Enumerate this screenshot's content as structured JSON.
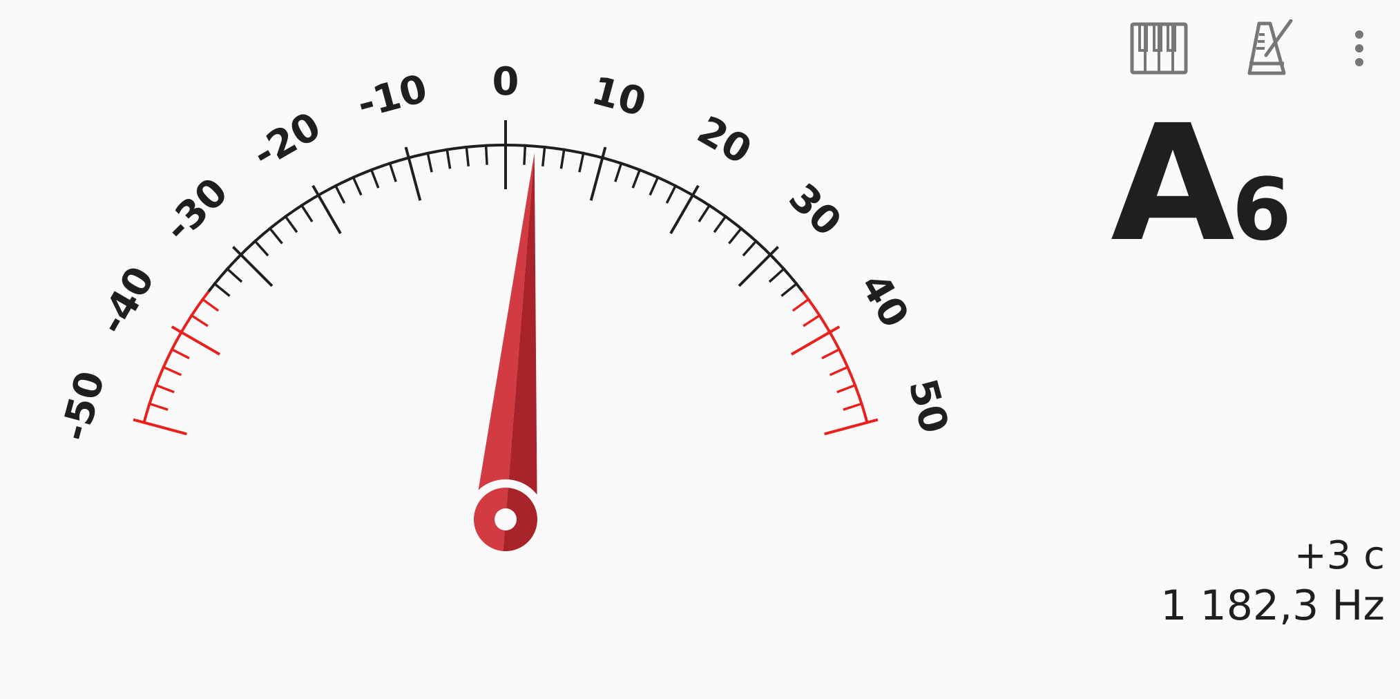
{
  "toolbar": {
    "piano_icon": "piano-keyboard-icon",
    "metronome_icon": "metronome-icon",
    "more_icon": "more-vertical-icon"
  },
  "gauge": {
    "scale_labels": [
      "-50",
      "-40",
      "-30",
      "-20",
      "-10",
      "0",
      "10",
      "20",
      "30",
      "40",
      "50"
    ],
    "needle_cents": 3,
    "warning_zone_cents": 35,
    "colors": {
      "ink": "#1f1f1f",
      "warning": "#e8211c",
      "needle_light": "#d13b41",
      "needle_dark": "#a8232a"
    }
  },
  "note": {
    "letter": "A",
    "octave": "6"
  },
  "readout": {
    "cents": "+3 c",
    "frequency": "1 182,3 Hz"
  }
}
